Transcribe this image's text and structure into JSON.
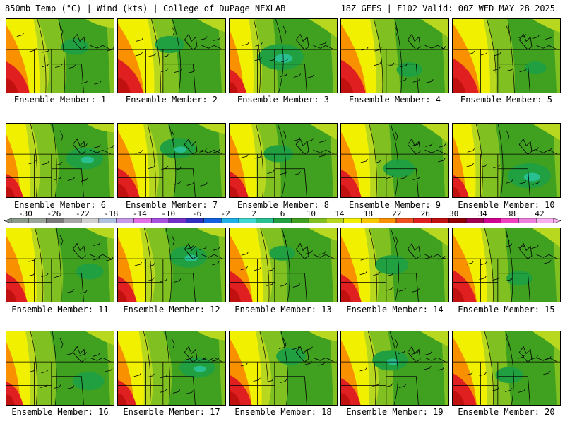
{
  "header": {
    "title": "850mb Temp (°C) | Wind (kts) | College of DuPage NEXLAB",
    "run_info": "18Z GEFS | F102 Valid: 00Z WED MAY 28 2025"
  },
  "panels": [
    {
      "label": "Ensemble Member: 1",
      "warm": 0.75,
      "cool": 0.35
    },
    {
      "label": "Ensemble Member: 2",
      "warm": 0.9,
      "cool": 0.4
    },
    {
      "label": "Ensemble Member: 3",
      "warm": 0.3,
      "cool": 0.8
    },
    {
      "label": "Ensemble Member: 4",
      "warm": 0.85,
      "cool": 0.3
    },
    {
      "label": "Ensemble Member: 5",
      "warm": 0.95,
      "cool": 0.2
    },
    {
      "label": "Ensemble Member: 6",
      "warm": 0.3,
      "cool": 0.6
    },
    {
      "label": "Ensemble Member: 7",
      "warm": 0.65,
      "cool": 0.55
    },
    {
      "label": "Ensemble Member: 8",
      "warm": 0.45,
      "cool": 0.4
    },
    {
      "label": "Ensemble Member: 9",
      "warm": 0.55,
      "cool": 0.45
    },
    {
      "label": "Ensemble Member: 10",
      "warm": 0.25,
      "cool": 0.75
    },
    {
      "label": "Ensemble Member: 11",
      "warm": 0.6,
      "cool": 0.35
    },
    {
      "label": "Ensemble Member: 12",
      "warm": 0.45,
      "cool": 0.6
    },
    {
      "label": "Ensemble Member: 13",
      "warm": 0.75,
      "cool": 0.3
    },
    {
      "label": "Ensemble Member: 14",
      "warm": 0.55,
      "cool": 0.5
    },
    {
      "label": "Ensemble Member: 15",
      "warm": 0.8,
      "cool": 0.3
    },
    {
      "label": "Ensemble Member: 16",
      "warm": 0.3,
      "cool": 0.45
    },
    {
      "label": "Ensemble Member: 17",
      "warm": 0.4,
      "cool": 0.55
    },
    {
      "label": "Ensemble Member: 18",
      "warm": 0.7,
      "cool": 0.4
    },
    {
      "label": "Ensemble Member: 19",
      "warm": 0.5,
      "cool": 0.55
    },
    {
      "label": "Ensemble Member: 20",
      "warm": 0.8,
      "cool": 0.35
    }
  ],
  "color_scale": {
    "labels": [
      "-30",
      "-26",
      "-22",
      "-18",
      "-14",
      "-10",
      "-6",
      "-2",
      "2",
      "6",
      "10",
      "14",
      "18",
      "22",
      "26",
      "30",
      "34",
      "38",
      "42"
    ],
    "colors": [
      "#8a9a8a",
      "#9aa59a",
      "#7b7b7b",
      "#a6a6a6",
      "#d0d0d0",
      "#b0c0e0",
      "#c89be8",
      "#e070e8",
      "#a850e0",
      "#7030c8",
      "#3030c0",
      "#1060e0",
      "#20b0e8",
      "#40d8d0",
      "#28c090",
      "#20a040",
      "#40a020",
      "#80c020",
      "#b8d820",
      "#f0f000",
      "#f8c800",
      "#f89000",
      "#f05020",
      "#e02020",
      "#c01010",
      "#900000",
      "#a00050",
      "#d00090",
      "#f040c0",
      "#f080e0",
      "#f8b0f0"
    ]
  }
}
